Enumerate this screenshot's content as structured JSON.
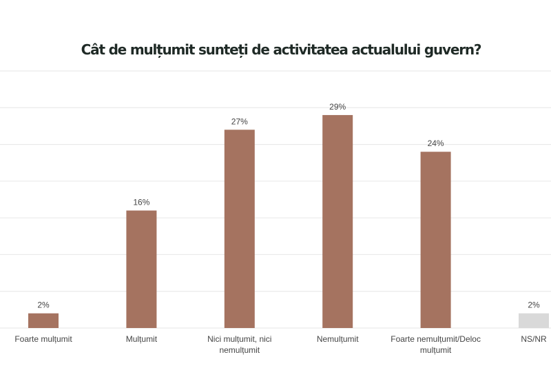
{
  "chart_data": {
    "type": "bar",
    "title": "Cât de mulțumit sunteți de activitatea actualului guvern?",
    "categories": [
      [
        "Foarte mulțumit"
      ],
      [
        "Mulțumit"
      ],
      [
        "Nici mulțumit, nici",
        "nemulțumit"
      ],
      [
        "Nemulțumit"
      ],
      [
        "Foarte nemulțumit/Deloc",
        "mulțumit"
      ],
      [
        "NS/NR"
      ]
    ],
    "values": [
      2,
      16,
      27,
      29,
      24,
      2
    ],
    "value_labels": [
      "2%",
      "16%",
      "27%",
      "29%",
      "24%",
      "2%"
    ],
    "ylim": [
      0,
      35
    ],
    "grid": true,
    "grid_step": 5,
    "colors": {
      "bar": "#a57360",
      "bar_other": "#d9d9d9",
      "grid": "#e6e6e6",
      "title": "#1f2a26"
    }
  }
}
